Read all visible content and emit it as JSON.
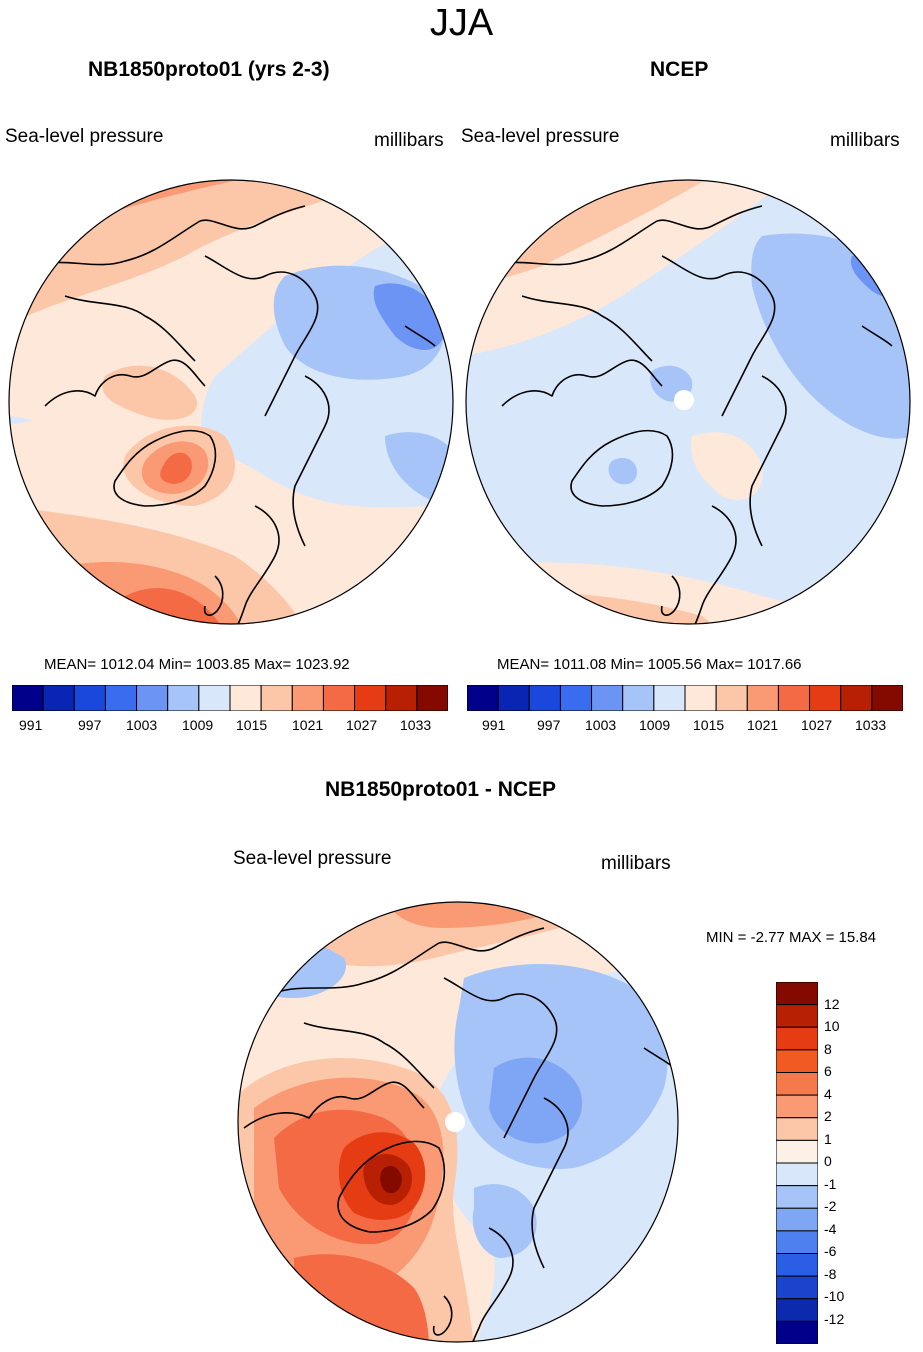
{
  "figure": {
    "season_title": "JJA"
  },
  "panel_model": {
    "title": "NB1850proto01 (yrs 2-3)",
    "left_label": "Sea-level pressure",
    "right_label": "millibars",
    "stats": "MEAN= 1012.04  Min= 1003.85  Max= 1023.92"
  },
  "panel_obs": {
    "title": "NCEP",
    "left_label": "Sea-level pressure",
    "right_label": "millibars",
    "stats": "MEAN= 1011.08  Min= 1005.56  Max= 1017.66"
  },
  "panel_diff": {
    "title": "NB1850proto01 - NCEP",
    "left_label": "Sea-level pressure",
    "right_label": "millibars",
    "minmax": "MIN =  -2.77 MAX =  15.84"
  },
  "abs_colorbar": {
    "colors": [
      "#00008b",
      "#0a24b4",
      "#1a48dc",
      "#3a6cf0",
      "#6b94f4",
      "#a6c4f8",
      "#d8e8fa",
      "#fde8da",
      "#fcc6a8",
      "#f99a74",
      "#f46a44",
      "#e63c14",
      "#b82004",
      "#840a00"
    ],
    "tick_labels": [
      "991",
      "997",
      "1003",
      "1009",
      "1015",
      "1021",
      "1027",
      "1033"
    ]
  },
  "diff_colorbar": {
    "colors": [
      "#840a00",
      "#b82004",
      "#e63c14",
      "#f25a24",
      "#f47a4c",
      "#f99a74",
      "#fcc6a8",
      "#fdf0e6",
      "#d8e8fa",
      "#a6c4f8",
      "#7ea6f4",
      "#4f80f0",
      "#2a5ee4",
      "#1a44cc",
      "#0c2aae",
      "#00008b"
    ],
    "tick_labels": [
      "12",
      "10",
      "8",
      "6",
      "4",
      "2",
      "1",
      "0",
      "-1",
      "-2",
      "-4",
      "-6",
      "-8",
      "-10",
      "-12"
    ]
  },
  "map_colors": {
    "ocean_light_blue": "#d8e8fa",
    "blue_mid": "#a6c4f8",
    "blue_strong": "#7ea6f4",
    "blue_deep": "#6b94f4",
    "cream": "#fde8da",
    "peach": "#fcc6a8",
    "salmon": "#f99a74",
    "orange": "#f46a44",
    "red": "#e63c14",
    "dark_red": "#b82004",
    "maroon": "#840a00",
    "land_outline": "#000000"
  }
}
